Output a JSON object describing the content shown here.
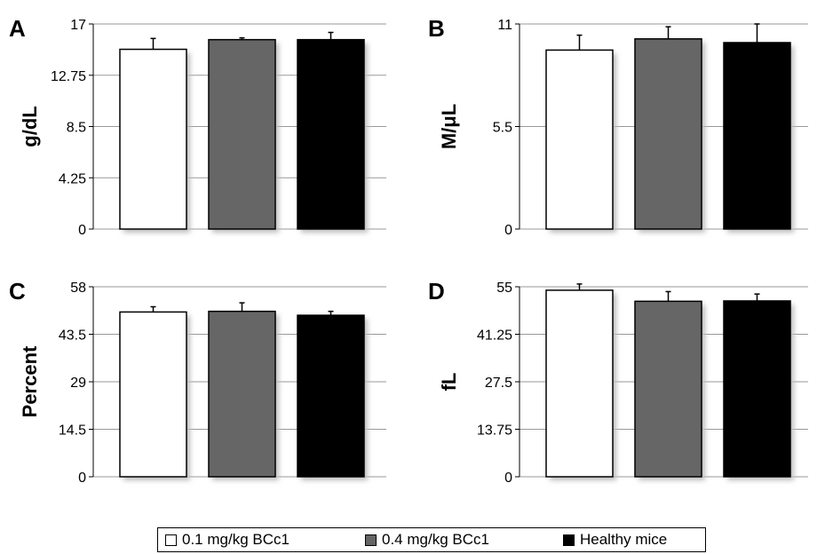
{
  "colors": {
    "low_dose": "#ffffff",
    "high_dose": "#666666",
    "healthy": "#000000",
    "grid": "#999999",
    "shadow": "#bdbdbd"
  },
  "legend": [
    {
      "label": "0.1 mg/kg BCc1",
      "color": "#ffffff"
    },
    {
      "label": "0.4 mg/kg BCc1",
      "color": "#666666"
    },
    {
      "label": "Healthy mice",
      "color": "#000000"
    }
  ],
  "chart_data": [
    {
      "panel": "A",
      "type": "bar",
      "ylabel": "g/dL",
      "ylim": [
        0,
        17
      ],
      "yticks": [
        "0",
        "4.25",
        "8.5",
        "12.75",
        "17"
      ],
      "categories": [
        "0.1 mg/kg BCc1",
        "0.4 mg/kg BCc1",
        "Healthy mice"
      ],
      "values": [
        14.9,
        15.7,
        15.7
      ],
      "errors": [
        0.9,
        0.15,
        0.6
      ],
      "colors": [
        "#ffffff",
        "#666666",
        "#000000"
      ],
      "grid": true
    },
    {
      "panel": "B",
      "type": "bar",
      "ylabel": "M/μL",
      "ylim": [
        0,
        11
      ],
      "yticks": [
        "0",
        "5.5",
        "11"
      ],
      "categories": [
        "0.1 mg/kg BCc1",
        "0.4 mg/kg BCc1",
        "Healthy mice"
      ],
      "values": [
        9.6,
        10.2,
        10.0
      ],
      "errors": [
        0.8,
        0.65,
        1.0
      ],
      "colors": [
        "#ffffff",
        "#666666",
        "#000000"
      ],
      "grid": true
    },
    {
      "panel": "C",
      "type": "bar",
      "ylabel": "Percent",
      "ylim": [
        0,
        58
      ],
      "yticks": [
        "0",
        "14.5",
        "29",
        "43.5",
        "58"
      ],
      "categories": [
        "0.1 mg/kg BCc1",
        "0.4 mg/kg BCc1",
        "Healthy mice"
      ],
      "values": [
        50.3,
        50.5,
        49.3
      ],
      "errors": [
        1.6,
        2.6,
        1.2
      ],
      "colors": [
        "#ffffff",
        "#666666",
        "#000000"
      ],
      "grid": true
    },
    {
      "panel": "D",
      "type": "bar",
      "ylabel": "fL",
      "ylim": [
        0,
        55
      ],
      "yticks": [
        "0",
        "13.75",
        "27.5",
        "41.25",
        "55"
      ],
      "categories": [
        "0.1 mg/kg BCc1",
        "0.4 mg/kg BCc1",
        "Healthy mice"
      ],
      "values": [
        54.0,
        50.8,
        50.9
      ],
      "errors": [
        1.8,
        2.8,
        2.0
      ],
      "colors": [
        "#ffffff",
        "#666666",
        "#000000"
      ],
      "grid": true
    }
  ]
}
